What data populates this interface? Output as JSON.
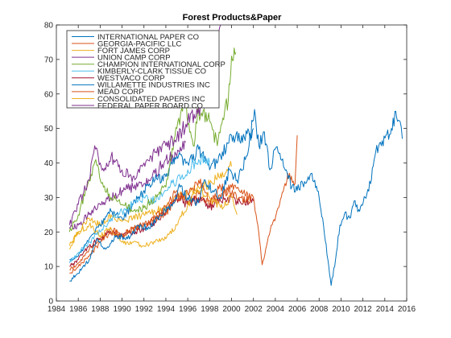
{
  "chart_data": {
    "type": "line",
    "title": "Forest Products&Paper",
    "xlabel": "",
    "ylabel": "",
    "xlim": [
      1984,
      2016
    ],
    "ylim": [
      0,
      80
    ],
    "xticks": [
      1984,
      1986,
      1988,
      1990,
      1992,
      1994,
      1996,
      1998,
      2000,
      2002,
      2004,
      2006,
      2008,
      2010,
      2012,
      2014,
      2016
    ],
    "yticks": [
      0,
      10,
      20,
      30,
      40,
      50,
      60,
      70,
      80
    ],
    "grid": false,
    "legend_position": "top-left",
    "series": [
      {
        "name": "INTERNATIONAL PAPER CO",
        "color": "#0072BD",
        "points": [
          [
            1985.2,
            5.8
          ],
          [
            1986,
            8
          ],
          [
            1987,
            12
          ],
          [
            1987.7,
            18
          ],
          [
            1988.5,
            15
          ],
          [
            1989.5,
            19
          ],
          [
            1990.5,
            18
          ],
          [
            1991.5,
            22
          ],
          [
            1992.5,
            21
          ],
          [
            1993.5,
            25
          ],
          [
            1994.5,
            28
          ],
          [
            1995.3,
            33
          ],
          [
            1996,
            30
          ],
          [
            1996.8,
            28
          ],
          [
            1997.6,
            35
          ],
          [
            1998.3,
            32
          ],
          [
            1999,
            30
          ],
          [
            1999.8,
            38
          ],
          [
            2000.5,
            35
          ],
          [
            2001,
            38
          ],
          [
            2001.6,
            45
          ],
          [
            2002.1,
            55.5
          ],
          [
            2002.5,
            45
          ],
          [
            2003,
            49
          ],
          [
            2003.5,
            38
          ],
          [
            2004,
            44
          ],
          [
            2004.5,
            41
          ],
          [
            2005,
            38
          ],
          [
            2005.5,
            33
          ],
          [
            2006,
            32
          ],
          [
            2006.5,
            34
          ],
          [
            2007,
            36
          ],
          [
            2007.6,
            35
          ],
          [
            2008,
            30
          ],
          [
            2008.4,
            22
          ],
          [
            2008.8,
            12
          ],
          [
            2009.1,
            4.5
          ],
          [
            2009.5,
            12
          ],
          [
            2009.9,
            22
          ],
          [
            2010.3,
            25
          ],
          [
            2010.8,
            24
          ],
          [
            2011.2,
            29
          ],
          [
            2011.7,
            26
          ],
          [
            2012.2,
            30
          ],
          [
            2012.7,
            34
          ],
          [
            2013.1,
            42
          ],
          [
            2013.6,
            46
          ],
          [
            2014.1,
            48
          ],
          [
            2014.6,
            50
          ],
          [
            2015,
            55
          ],
          [
            2015.4,
            52
          ],
          [
            2015.6,
            47
          ]
        ]
      },
      {
        "name": "GEORGIA-PACIFIC LLC",
        "color": "#D95319",
        "points": [
          [
            1985.2,
            8
          ],
          [
            1986,
            10
          ],
          [
            1987,
            13
          ],
          [
            1988,
            17
          ],
          [
            1989,
            20
          ],
          [
            1990,
            19
          ],
          [
            1991,
            21
          ],
          [
            1992,
            22
          ],
          [
            1993,
            24
          ],
          [
            1994,
            25
          ],
          [
            1995,
            30
          ],
          [
            1996,
            31
          ],
          [
            1997,
            35
          ],
          [
            1998,
            29
          ],
          [
            1999,
            33
          ],
          [
            2000,
            31
          ],
          [
            2000.8,
            30
          ],
          [
            2001.5,
            29
          ],
          [
            2002,
            30
          ],
          [
            2002.4,
            22
          ],
          [
            2002.8,
            10.5
          ],
          [
            2003.2,
            16
          ],
          [
            2003.7,
            22
          ],
          [
            2004.3,
            27
          ],
          [
            2004.8,
            33
          ],
          [
            2005.3,
            37
          ],
          [
            2005.8,
            34
          ],
          [
            2006,
            48
          ]
        ]
      },
      {
        "name": "FORT JAMES CORP",
        "color": "#EDB120",
        "points": [
          [
            1985.2,
            15
          ],
          [
            1986,
            20
          ],
          [
            1987,
            22
          ],
          [
            1988,
            19
          ],
          [
            1989,
            21
          ],
          [
            1990,
            17
          ],
          [
            1991,
            17
          ],
          [
            1992,
            16
          ],
          [
            1993,
            17
          ],
          [
            1994,
            18
          ],
          [
            1995,
            22
          ],
          [
            1996,
            28
          ],
          [
            1997,
            32
          ],
          [
            1998,
            30
          ],
          [
            1999,
            27
          ],
          [
            2000,
            30
          ],
          [
            2000.5,
            25
          ]
        ]
      },
      {
        "name": "UNION CAMP CORP",
        "color": "#7E2F8E",
        "points": [
          [
            1985.2,
            22
          ],
          [
            1986,
            28
          ],
          [
            1987,
            35
          ],
          [
            1987.5,
            45
          ],
          [
            1988,
            40
          ],
          [
            1988.5,
            38
          ],
          [
            1989,
            42
          ],
          [
            1990,
            38
          ],
          [
            1991,
            36
          ],
          [
            1992,
            40
          ],
          [
            1993,
            43
          ],
          [
            1994,
            45
          ],
          [
            1995,
            47
          ],
          [
            1996,
            52
          ],
          [
            1997,
            56
          ],
          [
            1998,
            60
          ],
          [
            1998.5,
            72
          ],
          [
            1999,
            80
          ]
        ]
      },
      {
        "name": "CHAMPION INTERNATIONAL CORP",
        "color": "#77AC30",
        "points": [
          [
            1985.2,
            20
          ],
          [
            1986,
            25
          ],
          [
            1987,
            35
          ],
          [
            1987.6,
            41
          ],
          [
            1988.3,
            33
          ],
          [
            1989,
            30
          ],
          [
            1990,
            28
          ],
          [
            1991,
            26
          ],
          [
            1992,
            27
          ],
          [
            1993,
            30
          ],
          [
            1994,
            33
          ],
          [
            1995,
            50
          ],
          [
            1995.7,
            58
          ],
          [
            1996.5,
            45
          ],
          [
            1997,
            55
          ],
          [
            1998,
            52
          ],
          [
            1998.7,
            45
          ],
          [
            1999.2,
            53
          ],
          [
            1999.7,
            58
          ],
          [
            2000,
            71
          ],
          [
            2000.4,
            72
          ]
        ]
      },
      {
        "name": "KIMBERLY-CLARK TISSUE CO",
        "color": "#4DBEEE",
        "points": [
          [
            1985.2,
            11
          ],
          [
            1986,
            14
          ],
          [
            1987,
            17
          ],
          [
            1988,
            20
          ],
          [
            1989,
            24
          ],
          [
            1990,
            26
          ],
          [
            1991,
            28
          ],
          [
            1992,
            30
          ],
          [
            1993,
            29
          ],
          [
            1994,
            32
          ],
          [
            1995,
            35
          ],
          [
            1996,
            38
          ],
          [
            1997,
            41
          ],
          [
            1998,
            40
          ]
        ]
      },
      {
        "name": "WESTVACO CORP",
        "color": "#A2142F",
        "points": [
          [
            1985.2,
            10
          ],
          [
            1986,
            12
          ],
          [
            1987,
            16
          ],
          [
            1988,
            18
          ],
          [
            1989,
            20
          ],
          [
            1990,
            19
          ],
          [
            1991,
            20
          ],
          [
            1992,
            21
          ],
          [
            1993,
            23
          ],
          [
            1994,
            26
          ],
          [
            1995,
            30
          ],
          [
            1996,
            28
          ],
          [
            1997,
            30
          ],
          [
            1998,
            27
          ],
          [
            1999,
            29
          ],
          [
            2000,
            30
          ],
          [
            2001,
            28
          ],
          [
            2002,
            29
          ]
        ]
      },
      {
        "name": "WILLAMETTE INDUSTRIES INC",
        "color": "#0072BD",
        "points": [
          [
            1985.2,
            12
          ],
          [
            1986,
            13
          ],
          [
            1987,
            18
          ],
          [
            1988,
            22
          ],
          [
            1989,
            26
          ],
          [
            1990,
            24
          ],
          [
            1991,
            28
          ],
          [
            1992,
            32
          ],
          [
            1993,
            35
          ],
          [
            1994,
            36
          ],
          [
            1995,
            42
          ],
          [
            1996,
            40
          ],
          [
            1997,
            44
          ],
          [
            1998,
            38
          ],
          [
            1999,
            42
          ],
          [
            2000,
            48
          ],
          [
            2001,
            46
          ],
          [
            2002,
            50
          ]
        ]
      },
      {
        "name": "MEAD CORP",
        "color": "#D95319",
        "points": [
          [
            1985.2,
            9
          ],
          [
            1986,
            11
          ],
          [
            1987,
            15
          ],
          [
            1988,
            18
          ],
          [
            1989,
            21
          ],
          [
            1990,
            19
          ],
          [
            1991,
            21
          ],
          [
            1992,
            22
          ],
          [
            1993,
            24
          ],
          [
            1994,
            27
          ],
          [
            1995,
            32
          ],
          [
            1996,
            29
          ],
          [
            1997,
            31
          ],
          [
            1998,
            28
          ],
          [
            1999,
            30
          ],
          [
            2000,
            33
          ],
          [
            2001,
            31
          ],
          [
            2001.8,
            30
          ]
        ]
      },
      {
        "name": "CONSOLIDATED PAPERS INC",
        "color": "#EDB120",
        "points": [
          [
            1985.2,
            16
          ],
          [
            1986,
            20
          ],
          [
            1987,
            24
          ],
          [
            1988,
            22
          ],
          [
            1989,
            25
          ],
          [
            1990,
            23
          ],
          [
            1991,
            24
          ],
          [
            1992,
            25
          ],
          [
            1993,
            26
          ],
          [
            1994,
            27
          ],
          [
            1995,
            30
          ],
          [
            1996,
            31
          ],
          [
            1997,
            33
          ],
          [
            1998,
            34
          ],
          [
            1999,
            37
          ],
          [
            2000,
            39
          ]
        ]
      },
      {
        "name": "FEDERAL PAPER BOARD CO",
        "color": "#7E2F8E",
        "points": [
          [
            1985.2,
            21
          ],
          [
            1986,
            22
          ],
          [
            1987,
            25
          ],
          [
            1988,
            28
          ],
          [
            1989,
            30
          ],
          [
            1990,
            32
          ],
          [
            1991,
            33
          ],
          [
            1992,
            34
          ],
          [
            1993,
            37
          ],
          [
            1994,
            41
          ],
          [
            1995,
            42
          ],
          [
            1995.8,
            46
          ]
        ]
      }
    ]
  }
}
